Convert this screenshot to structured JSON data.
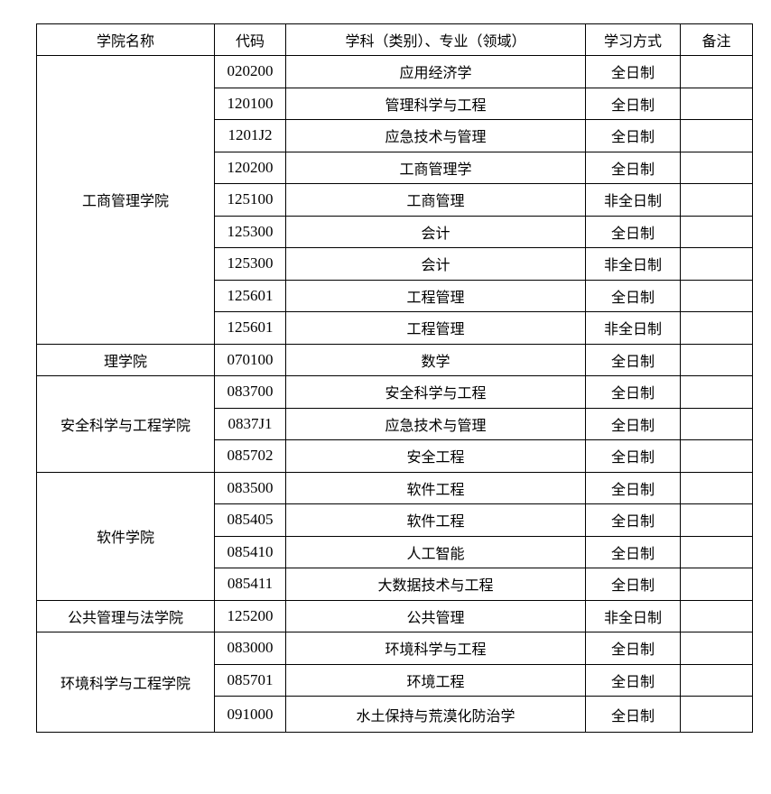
{
  "headers": [
    "学院名称",
    "代码",
    "学科（类别）、专业（领域）",
    "学习方式",
    "备注"
  ],
  "groups": [
    {
      "college": "工商管理学院",
      "rows": [
        {
          "code": "020200",
          "major": "应用经济学",
          "mode": "全日制",
          "note": ""
        },
        {
          "code": "120100",
          "major": "管理科学与工程",
          "mode": "全日制",
          "note": ""
        },
        {
          "code": "1201J2",
          "major": "应急技术与管理",
          "mode": "全日制",
          "note": ""
        },
        {
          "code": "120200",
          "major": "工商管理学",
          "mode": "全日制",
          "note": ""
        },
        {
          "code": "125100",
          "major": "工商管理",
          "mode": "非全日制",
          "note": ""
        },
        {
          "code": "125300",
          "major": "会计",
          "mode": "全日制",
          "note": ""
        },
        {
          "code": "125300",
          "major": "会计",
          "mode": "非全日制",
          "note": ""
        },
        {
          "code": "125601",
          "major": "工程管理",
          "mode": "全日制",
          "note": ""
        },
        {
          "code": "125601",
          "major": "工程管理",
          "mode": "非全日制",
          "note": ""
        }
      ]
    },
    {
      "college": "理学院",
      "rows": [
        {
          "code": "070100",
          "major": "数学",
          "mode": "全日制",
          "note": ""
        }
      ]
    },
    {
      "college": "安全科学与工程学院",
      "rows": [
        {
          "code": "083700",
          "major": "安全科学与工程",
          "mode": "全日制",
          "note": ""
        },
        {
          "code": "0837J1",
          "major": "应急技术与管理",
          "mode": "全日制",
          "note": ""
        },
        {
          "code": "085702",
          "major": "安全工程",
          "mode": "全日制",
          "note": ""
        }
      ]
    },
    {
      "college": "软件学院",
      "rows": [
        {
          "code": "083500",
          "major": "软件工程",
          "mode": "全日制",
          "note": ""
        },
        {
          "code": "085405",
          "major": "软件工程",
          "mode": "全日制",
          "note": ""
        },
        {
          "code": "085410",
          "major": "人工智能",
          "mode": "全日制",
          "note": ""
        },
        {
          "code": "085411",
          "major": "大数据技术与工程",
          "mode": "全日制",
          "note": ""
        }
      ]
    },
    {
      "college": "公共管理与法学院",
      "rows": [
        {
          "code": "125200",
          "major": "公共管理",
          "mode": "非全日制",
          "note": ""
        }
      ]
    },
    {
      "college": "环境科学与工程学院",
      "rows": [
        {
          "code": "083000",
          "major": "环境科学与工程",
          "mode": "全日制",
          "note": ""
        },
        {
          "code": "085701",
          "major": "环境工程",
          "mode": "全日制",
          "note": ""
        },
        {
          "code": "091000",
          "major": "水土保持与荒漠化防治学",
          "mode": "全日制",
          "note": ""
        }
      ]
    }
  ]
}
